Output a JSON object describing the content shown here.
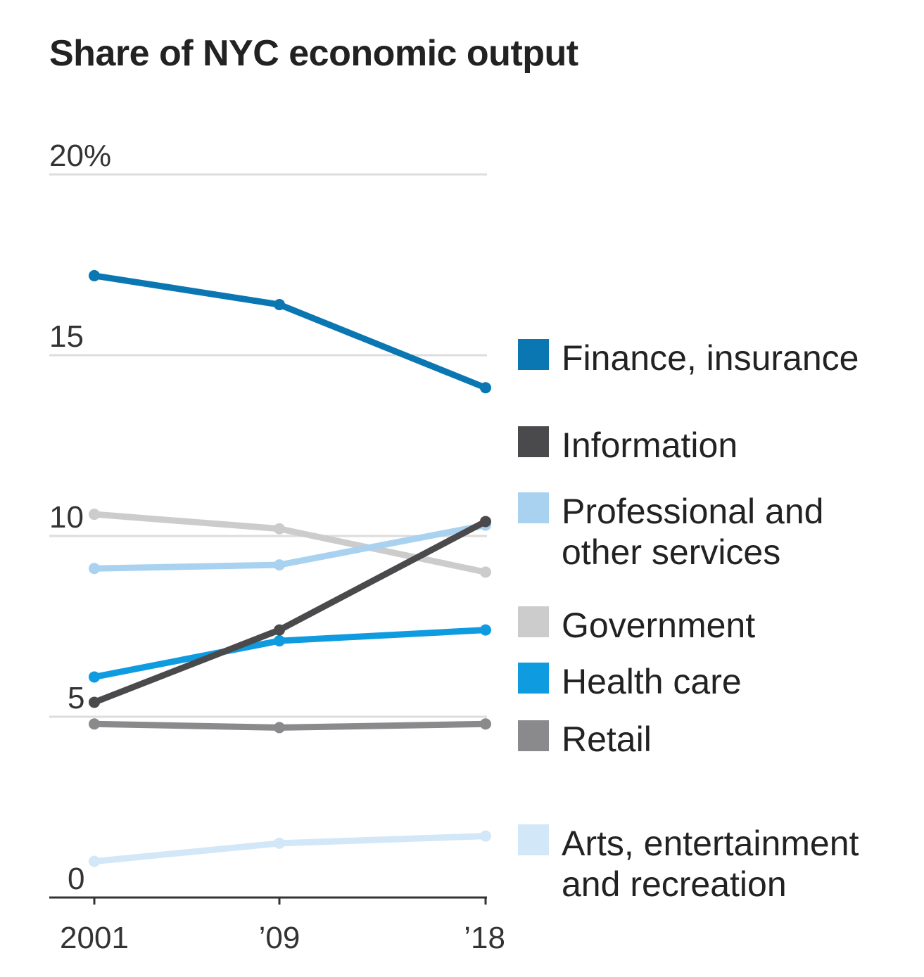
{
  "chart_data": {
    "type": "line",
    "title": "Share of NYC economic output",
    "x": [
      2001,
      2009,
      2018
    ],
    "x_tick_labels": [
      "2001",
      "’09",
      "’18"
    ],
    "y_ticks": [
      0,
      5,
      10,
      15,
      20
    ],
    "y_tick_labels": [
      "0",
      "5",
      "10",
      "15",
      "20%"
    ],
    "ylim": [
      0,
      20
    ],
    "xlabel": "",
    "ylabel": "",
    "grid": true,
    "legend_position": "right",
    "series": [
      {
        "name": "Finance, insurance",
        "color": "#0a77b2",
        "values": [
          17.2,
          16.4,
          14.1
        ]
      },
      {
        "name": "Information",
        "color": "#4a4a4c",
        "values": [
          5.4,
          7.4,
          10.4
        ]
      },
      {
        "name": "Professional and other services",
        "color": "#a8d2f0",
        "values": [
          9.1,
          9.2,
          10.3
        ]
      },
      {
        "name": "Government",
        "color": "#cccccc",
        "values": [
          10.6,
          10.2,
          9.0
        ]
      },
      {
        "name": "Health care",
        "color": "#0e9be0",
        "values": [
          6.1,
          7.1,
          7.4
        ]
      },
      {
        "name": "Retail",
        "color": "#8a8a8c",
        "values": [
          4.8,
          4.7,
          4.8
        ]
      },
      {
        "name": "Arts, entertainment and recreation",
        "color": "#d2e7f7",
        "values": [
          1.0,
          1.5,
          1.7
        ]
      }
    ]
  }
}
